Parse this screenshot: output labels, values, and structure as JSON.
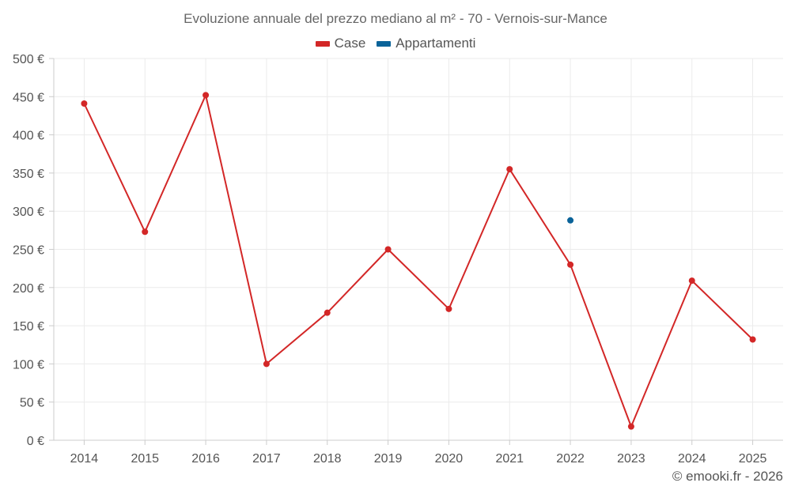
{
  "chart_data": {
    "type": "line",
    "title": "Evoluzione annuale del prezzo mediano al m² - 70 - Vernois-sur-Mance",
    "categories": [
      "2014",
      "2015",
      "2016",
      "2017",
      "2018",
      "2019",
      "2020",
      "2021",
      "2022",
      "2023",
      "2024",
      "2025"
    ],
    "series": [
      {
        "name": "Case",
        "color": "#d32727",
        "values": [
          441,
          273,
          452,
          100,
          167,
          250,
          172,
          355,
          230,
          18,
          209,
          132
        ]
      },
      {
        "name": "Appartamenti",
        "color": "#0a6399",
        "values": [
          null,
          null,
          null,
          null,
          null,
          null,
          null,
          null,
          288,
          null,
          null,
          null
        ]
      }
    ],
    "ylim": [
      0,
      500
    ],
    "yticks": [
      0,
      50,
      100,
      150,
      200,
      250,
      300,
      350,
      400,
      450,
      500
    ],
    "ytick_labels": [
      "0 €",
      "50 €",
      "100 €",
      "150 €",
      "200 €",
      "250 €",
      "300 €",
      "350 €",
      "400 €",
      "450 €",
      "500 €"
    ],
    "xlabel": "",
    "ylabel": "",
    "grid": true,
    "legend_position": "top-center"
  },
  "credit": "© emooki.fr - 2026"
}
